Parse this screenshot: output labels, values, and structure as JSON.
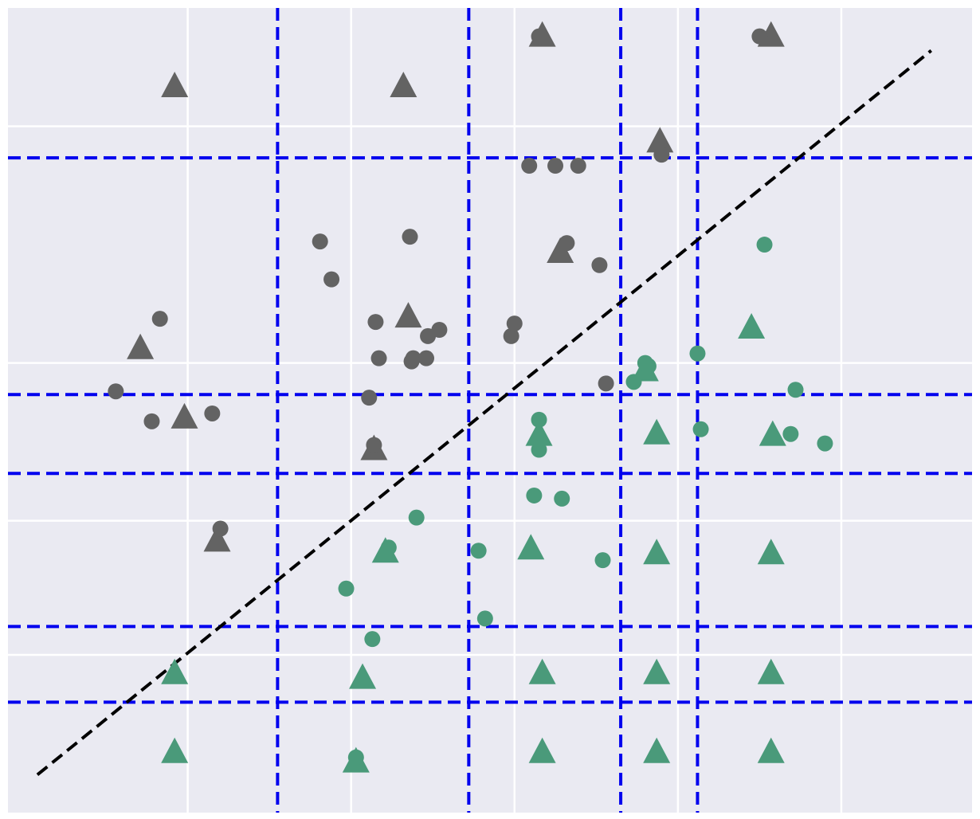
{
  "chart_data": {
    "type": "scatter",
    "title": "",
    "xlabel": "",
    "ylabel": "",
    "grid": true,
    "background": "#eaeaf2",
    "xlim": [
      -0.1,
      5.8
    ],
    "ylim": [
      -0.1,
      5.0
    ],
    "x_grid": [
      1.0,
      2.0,
      3.0,
      4.0,
      5.0
    ],
    "y_grid": [
      0.9,
      1.75,
      2.75,
      4.25
    ],
    "boundary_line": {
      "from": [
        0.08,
        0.14
      ],
      "to": [
        5.55,
        4.73
      ],
      "color": "#000000"
    },
    "split_lines": {
      "color": "#0000ee",
      "vertical": [
        1.55,
        2.72,
        3.65,
        4.12
      ],
      "horizontal": [
        0.6,
        1.08,
        2.05,
        2.55,
        4.05
      ]
    },
    "colors": {
      "class_a": "#636363",
      "class_b": "#4a9a7a"
    },
    "series": [
      {
        "class": "a",
        "marker": "circle",
        "points": [
          [
            0.83,
            3.03
          ],
          [
            0.56,
            2.57
          ],
          [
            0.78,
            2.38
          ],
          [
            1.15,
            2.43
          ],
          [
            1.81,
            3.52
          ],
          [
            1.88,
            3.28
          ],
          [
            2.15,
            3.01
          ],
          [
            2.17,
            2.78
          ],
          [
            2.11,
            2.53
          ],
          [
            2.36,
            3.55
          ],
          [
            2.37,
            2.76
          ],
          [
            2.38,
            2.78
          ],
          [
            2.46,
            2.78
          ],
          [
            2.47,
            2.92
          ],
          [
            2.54,
            2.96
          ],
          [
            2.98,
            2.92
          ],
          [
            3.0,
            3.0
          ],
          [
            3.09,
            4.0
          ],
          [
            3.25,
            4.0
          ],
          [
            3.39,
            4.0
          ],
          [
            3.32,
            3.51
          ],
          [
            3.52,
            3.37
          ],
          [
            3.56,
            2.62
          ],
          [
            3.9,
            4.07
          ],
          [
            2.14,
            2.23
          ],
          [
            3.15,
            4.82
          ],
          [
            4.5,
            4.82
          ],
          [
            1.2,
            1.7
          ]
        ]
      },
      {
        "class": "a",
        "marker": "triangle",
        "points": [
          [
            0.92,
            4.5
          ],
          [
            2.32,
            4.5
          ],
          [
            3.17,
            4.82
          ],
          [
            4.57,
            4.82
          ],
          [
            3.89,
            4.15
          ],
          [
            3.28,
            3.45
          ],
          [
            0.71,
            2.84
          ],
          [
            2.35,
            3.04
          ],
          [
            0.98,
            2.4
          ],
          [
            2.14,
            2.2
          ],
          [
            1.18,
            1.62
          ]
        ]
      },
      {
        "class": "b",
        "marker": "circle",
        "points": [
          [
            4.53,
            3.5
          ],
          [
            4.12,
            2.81
          ],
          [
            4.72,
            2.58
          ],
          [
            3.82,
            2.73
          ],
          [
            3.73,
            2.63
          ],
          [
            3.8,
            2.75
          ],
          [
            3.15,
            2.39
          ],
          [
            4.14,
            2.33
          ],
          [
            4.69,
            2.3
          ],
          [
            4.9,
            2.24
          ],
          [
            3.15,
            2.2
          ],
          [
            3.12,
            1.91
          ],
          [
            3.29,
            1.89
          ],
          [
            2.4,
            1.77
          ],
          [
            2.23,
            1.58
          ],
          [
            1.97,
            1.32
          ],
          [
            2.78,
            1.56
          ],
          [
            3.54,
            1.5
          ],
          [
            2.82,
            1.13
          ],
          [
            2.13,
            1.0
          ],
          [
            2.03,
            0.25
          ]
        ]
      },
      {
        "class": "b",
        "marker": "triangle",
        "points": [
          [
            4.45,
            2.97
          ],
          [
            3.8,
            2.7
          ],
          [
            3.15,
            2.29
          ],
          [
            3.87,
            2.3
          ],
          [
            4.58,
            2.29
          ],
          [
            2.21,
            1.55
          ],
          [
            3.1,
            1.57
          ],
          [
            3.87,
            1.54
          ],
          [
            4.57,
            1.54
          ],
          [
            0.92,
            0.78
          ],
          [
            2.07,
            0.75
          ],
          [
            3.17,
            0.78
          ],
          [
            3.87,
            0.78
          ],
          [
            4.57,
            0.78
          ],
          [
            0.92,
            0.28
          ],
          [
            2.03,
            0.22
          ],
          [
            3.17,
            0.28
          ],
          [
            3.87,
            0.28
          ],
          [
            4.57,
            0.28
          ]
        ]
      }
    ]
  }
}
